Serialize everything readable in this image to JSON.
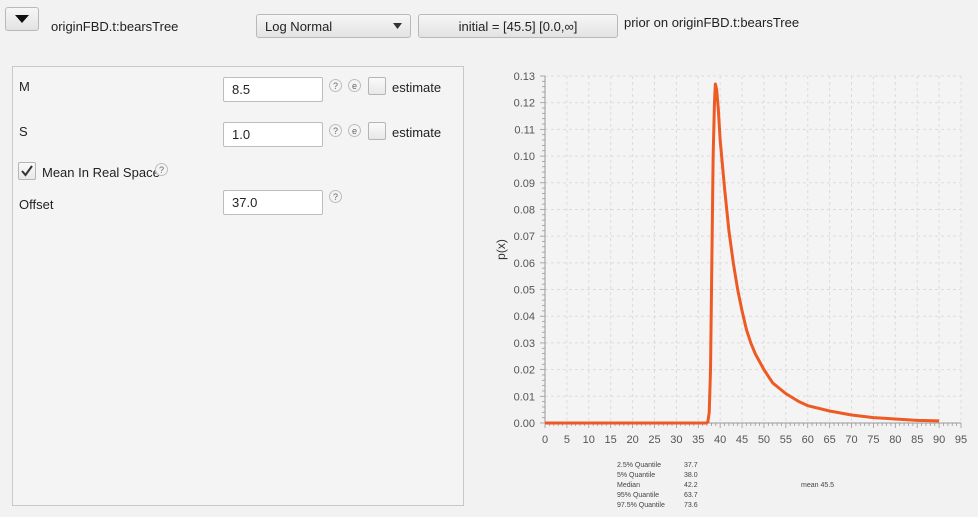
{
  "header": {
    "collapse_icon": "triangle-down-icon",
    "parameter_name": "originFBD.t:bearsTree",
    "distribution_selected": "Log Normal",
    "initial_button_label": "initial = [45.5] [0.0,∞]",
    "prior_label": "prior on originFBD.t:bearsTree"
  },
  "params": {
    "m": {
      "label": "M",
      "value": "8.5",
      "help": "?",
      "extra": "e",
      "estimate_label": "estimate",
      "estimate_checked": false
    },
    "s": {
      "label": "S",
      "value": "1.0",
      "help": "?",
      "extra": "e",
      "estimate_label": "estimate",
      "estimate_checked": false
    },
    "mean_real": {
      "label": "Mean In Real Space",
      "checked": true,
      "help": "?"
    },
    "offset": {
      "label": "Offset",
      "value": "37.0",
      "help": "?"
    }
  },
  "chart_data": {
    "type": "line",
    "xlabel": "",
    "ylabel": "p(x)",
    "xlim": [
      0,
      95
    ],
    "ylim": [
      0,
      0.13
    ],
    "x_ticks": [
      "0",
      "5",
      "10",
      "15",
      "20",
      "25",
      "30",
      "35",
      "40",
      "45",
      "50",
      "55",
      "60",
      "65",
      "70",
      "75",
      "80",
      "85",
      "90",
      "95"
    ],
    "y_ticks": [
      "0.00",
      "0.01",
      "0.02",
      "0.03",
      "0.04",
      "0.05",
      "0.06",
      "0.07",
      "0.08",
      "0.09",
      "0.10",
      "0.11",
      "0.12",
      "0.13"
    ],
    "grid": true,
    "color": "#ee5a24",
    "x": [
      0,
      10,
      20,
      30,
      36.9,
      37.2,
      37.5,
      37.8,
      38.1,
      38.4,
      38.7,
      38.9,
      39.2,
      39.6,
      40,
      41,
      42,
      43,
      44,
      45,
      46,
      47,
      48,
      50,
      52,
      55,
      58,
      60,
      65,
      70,
      75,
      80,
      85,
      90
    ],
    "y": [
      0,
      0,
      0,
      0,
      0,
      0.0005,
      0.004,
      0.02,
      0.06,
      0.1,
      0.12,
      0.127,
      0.125,
      0.117,
      0.106,
      0.088,
      0.072,
      0.06,
      0.05,
      0.042,
      0.035,
      0.03,
      0.026,
      0.02,
      0.015,
      0.011,
      0.008,
      0.0065,
      0.0045,
      0.003,
      0.002,
      0.0015,
      0.001,
      0.0008
    ]
  },
  "stats": {
    "rows": [
      {
        "label": "2.5% Quantile",
        "value": "37.7"
      },
      {
        "label": "5% Quantile",
        "value": "38.0"
      },
      {
        "label": "Median",
        "value": "42.2"
      },
      {
        "label": "95% Quantile",
        "value": "63.7"
      },
      {
        "label": "97.5% Quantile",
        "value": "73.6"
      }
    ],
    "mean": "mean 45.5"
  }
}
